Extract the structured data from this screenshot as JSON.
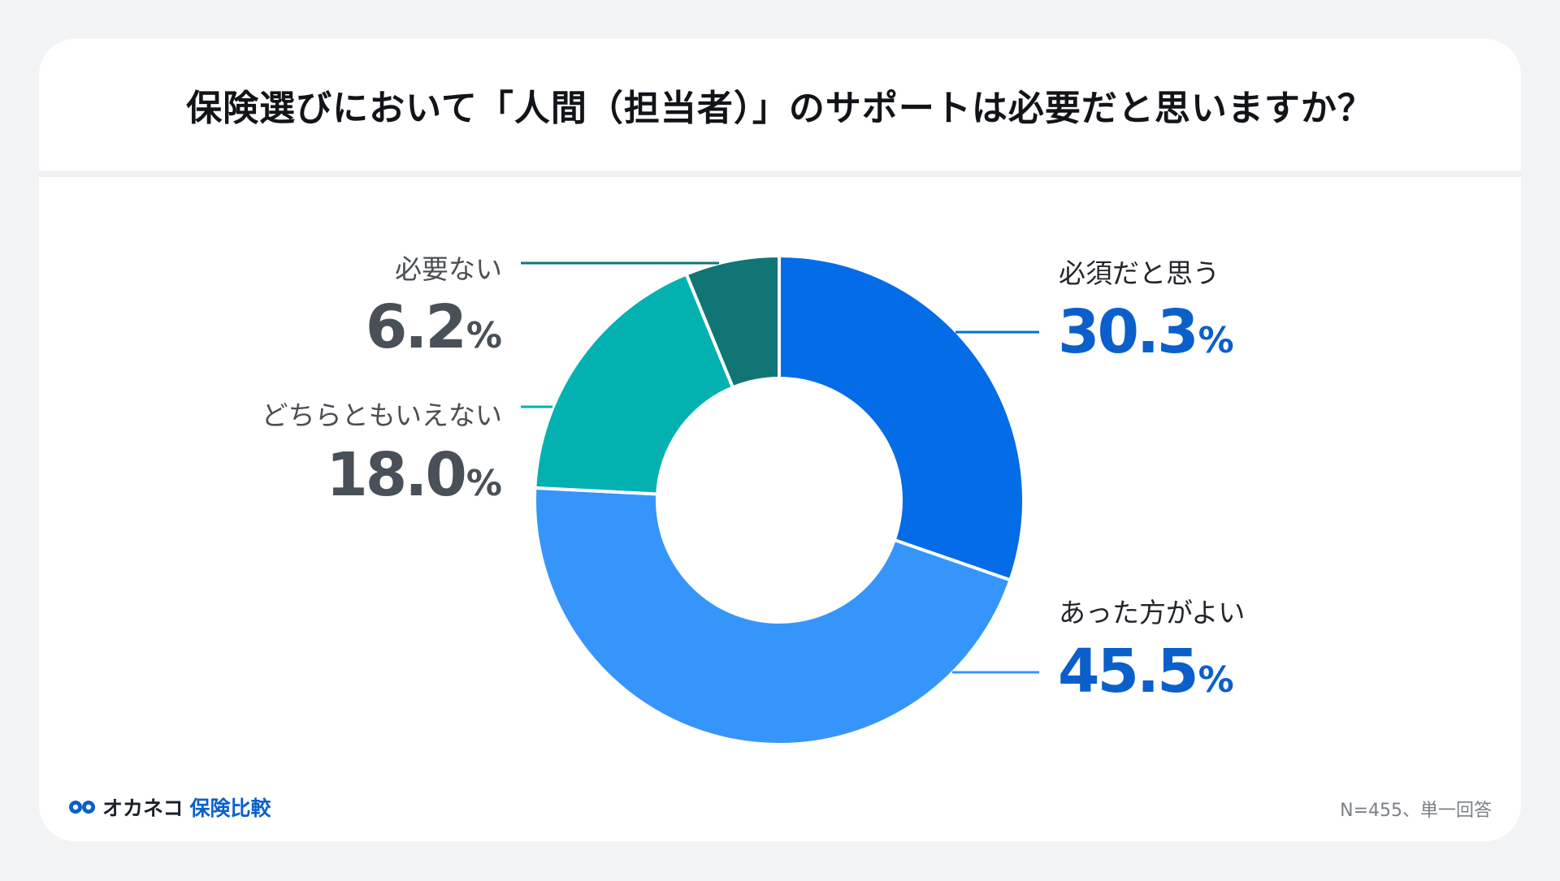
{
  "title": "保険選びにおいて「人間（担当者）」のサポートは必要だと思いますか？",
  "colors": {
    "required": "#036ce6",
    "better": "#3695fb",
    "neither": "#04b1b1",
    "not_needed": "#117575",
    "value_blue": "#0b5fcb",
    "value_gray": "#495057"
  },
  "chart_data": {
    "type": "pie",
    "style": "donut",
    "categories": [
      "必須だと思う",
      "あった方がよい",
      "どちらともいえない",
      "必要ない"
    ],
    "values": [
      30.3,
      45.5,
      18.0,
      6.2
    ],
    "unit": "%"
  },
  "labels": {
    "required": {
      "name": "必須だと思う",
      "value": "30.3",
      "unit": "%"
    },
    "better": {
      "name": "あった方がよい",
      "value": "45.5",
      "unit": "%"
    },
    "neither": {
      "name": "どちらともいえない",
      "value": "18.0",
      "unit": "%"
    },
    "not_needed": {
      "name": "必要ない",
      "value": "6.2",
      "unit": "%"
    }
  },
  "brand": {
    "name": "オカネコ",
    "sub": "保険比較",
    "icon": "okaneko-logo-icon"
  },
  "footnote": "N=455、単一回答"
}
